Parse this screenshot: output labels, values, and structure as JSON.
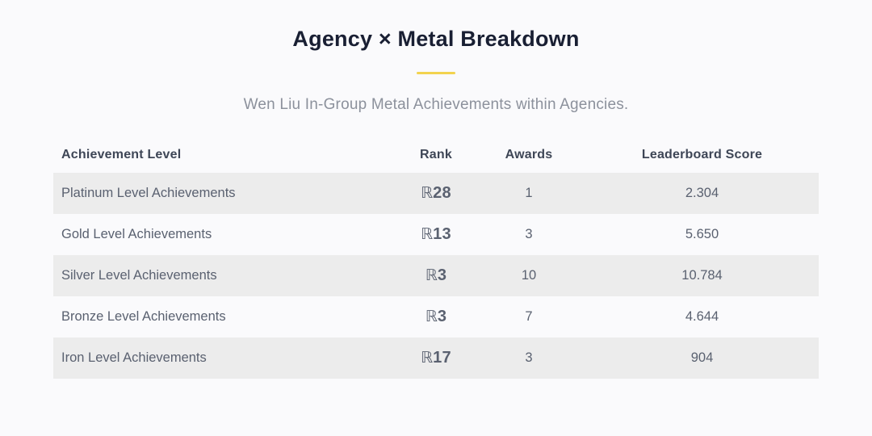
{
  "page": {
    "title": "Agency × Metal Breakdown",
    "subtitle": "Wen Liu In-Group Metal Achievements within Agencies.",
    "accent_color": "#f2d34f",
    "background_color": "#fafafc",
    "stripe_color": "#ececec"
  },
  "table": {
    "columns": {
      "level": "Achievement Level",
      "rank": "Rank",
      "awards": "Awards",
      "score": "Leaderboard Score"
    },
    "rank_symbol": "ℝ",
    "rows": [
      {
        "level": "Platinum Level Achievements",
        "rank": "28",
        "awards": "1",
        "score": "2.304"
      },
      {
        "level": "Gold Level Achievements",
        "rank": "13",
        "awards": "3",
        "score": "5.650"
      },
      {
        "level": "Silver Level Achievements",
        "rank": "3",
        "awards": "10",
        "score": "10.784"
      },
      {
        "level": "Bronze Level Achievements",
        "rank": "3",
        "awards": "7",
        "score": "4.644"
      },
      {
        "level": "Iron Level Achievements",
        "rank": "17",
        "awards": "3",
        "score": "904"
      }
    ]
  }
}
